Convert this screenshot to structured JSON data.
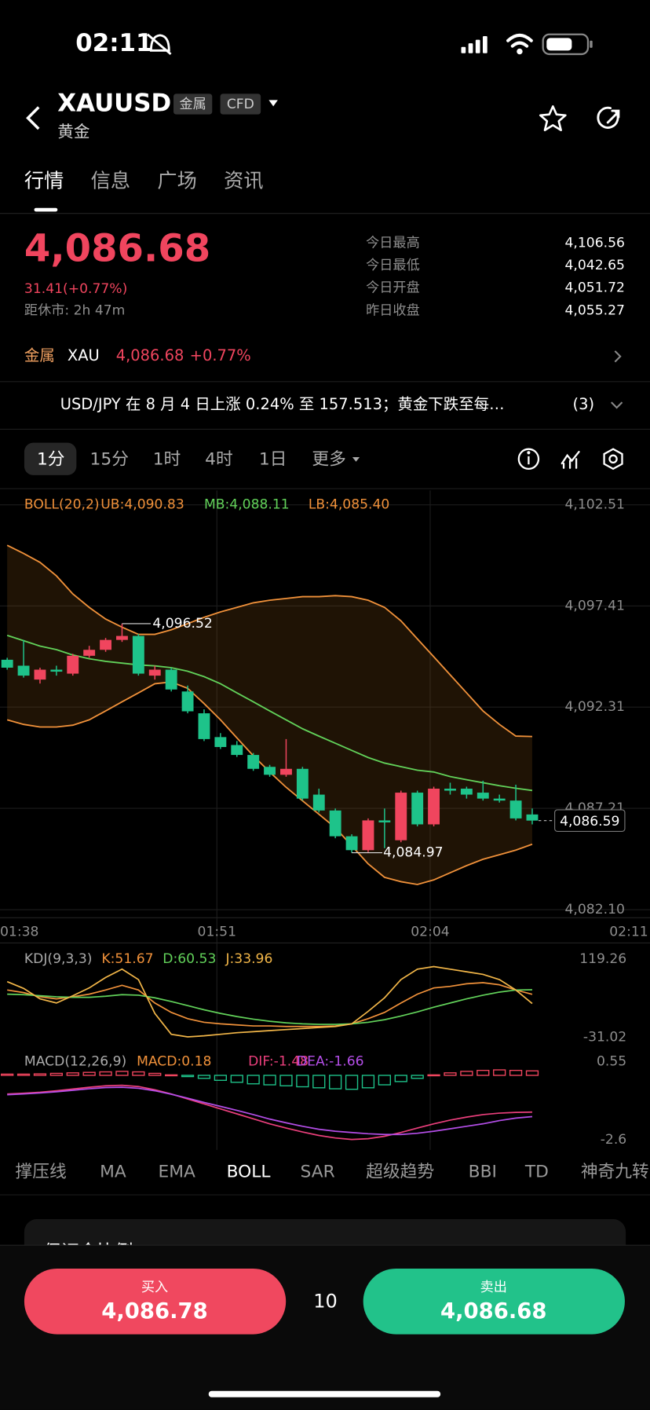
{
  "status_bar": {
    "time": "02:11"
  },
  "header": {
    "symbol": "XAUUSD",
    "tags": [
      "金属",
      "CFD"
    ],
    "name": "黄金"
  },
  "tabs": {
    "items": [
      "行情",
      "信息",
      "广场",
      "资讯"
    ],
    "active": 0
  },
  "quote": {
    "price": "4,086.68",
    "change": "31.41(+0.77%)",
    "session": "距休市: 2h 47m",
    "stats": [
      {
        "label": "今日最高",
        "value": "4,106.56"
      },
      {
        "label": "今日最低",
        "value": "4,042.65"
      },
      {
        "label": "今日开盘",
        "value": "4,051.72"
      },
      {
        "label": "昨日收盘",
        "value": "4,055.27"
      }
    ]
  },
  "related": {
    "category": "金属",
    "symbol": "XAU",
    "price": "4,086.68",
    "change": "+0.77%"
  },
  "news": {
    "headline": "USD/JPY 在 8 月 4 日上涨 0.24% 至 157.513；黄金下跌至每…",
    "count": "(3)"
  },
  "intervals": {
    "items": [
      "1分",
      "15分",
      "1时",
      "4时",
      "1日",
      "更多"
    ],
    "active": 0
  },
  "chart": {
    "type": "candlestick",
    "up_color": "#f0455e",
    "down_color": "#1ec38a",
    "ylim": [
      4082.1,
      4102.51
    ],
    "yticks": [
      {
        "value": 4102.51,
        "label": "4,102.51"
      },
      {
        "value": 4097.41,
        "label": "4,097.41"
      },
      {
        "value": 4092.31,
        "label": "4,092.31"
      },
      {
        "value": 4087.21,
        "label": "4,087.21"
      },
      {
        "value": 4082.1,
        "label": "4,082.10"
      }
    ],
    "xticks": [
      {
        "value": 0,
        "label": "01:38"
      },
      {
        "value": 13,
        "label": "01:51"
      },
      {
        "value": 26,
        "label": "02:04"
      },
      {
        "value": 33,
        "label": "02:11"
      }
    ],
    "candles": [
      {
        "open": 4094.7,
        "high": 4094.8,
        "low": 4094.2,
        "close": 4094.3
      },
      {
        "open": 4094.4,
        "high": 4095.7,
        "low": 4093.8,
        "close": 4093.9
      },
      {
        "open": 4093.7,
        "high": 4094.3,
        "low": 4093.5,
        "close": 4094.2
      },
      {
        "open": 4094.2,
        "high": 4094.4,
        "low": 4093.9,
        "close": 4094.1
      },
      {
        "open": 4094.0,
        "high": 4095.0,
        "low": 4093.9,
        "close": 4094.9
      },
      {
        "open": 4094.9,
        "high": 4095.4,
        "low": 4094.8,
        "close": 4095.2
      },
      {
        "open": 4095.2,
        "high": 4095.8,
        "low": 4095.1,
        "close": 4095.7
      },
      {
        "open": 4095.7,
        "high": 4096.52,
        "low": 4095.6,
        "close": 4095.9
      },
      {
        "open": 4095.9,
        "high": 4096.0,
        "low": 4093.9,
        "close": 4094.0
      },
      {
        "open": 4093.9,
        "high": 4094.4,
        "low": 4093.7,
        "close": 4094.2
      },
      {
        "open": 4094.2,
        "high": 4094.3,
        "low": 4093.1,
        "close": 4093.2
      },
      {
        "open": 4093.1,
        "high": 4093.4,
        "low": 4092.0,
        "close": 4092.1
      },
      {
        "open": 4092.0,
        "high": 4092.2,
        "low": 4090.6,
        "close": 4090.7
      },
      {
        "open": 4090.8,
        "high": 4091.0,
        "low": 4090.2,
        "close": 4090.3
      },
      {
        "open": 4090.4,
        "high": 4090.6,
        "low": 4089.8,
        "close": 4089.9
      },
      {
        "open": 4089.9,
        "high": 4090.0,
        "low": 4089.1,
        "close": 4089.2
      },
      {
        "open": 4089.3,
        "high": 4089.4,
        "low": 4088.8,
        "close": 4088.9
      },
      {
        "open": 4088.9,
        "high": 4090.7,
        "low": 4088.8,
        "close": 4089.2
      },
      {
        "open": 4089.2,
        "high": 4089.3,
        "low": 4087.6,
        "close": 4087.7
      },
      {
        "open": 4087.9,
        "high": 4088.2,
        "low": 4087.0,
        "close": 4087.1
      },
      {
        "open": 4087.1,
        "high": 4087.2,
        "low": 4085.7,
        "close": 4085.8
      },
      {
        "open": 4085.8,
        "high": 4085.9,
        "low": 4084.97,
        "close": 4085.1
      },
      {
        "open": 4085.1,
        "high": 4086.7,
        "low": 4085.0,
        "close": 4086.6
      },
      {
        "open": 4086.6,
        "high": 4087.2,
        "low": 4085.2,
        "close": 4086.5
      },
      {
        "open": 4085.6,
        "high": 4088.1,
        "low": 4085.5,
        "close": 4088.0
      },
      {
        "open": 4088.0,
        "high": 4088.1,
        "low": 4086.3,
        "close": 4086.4
      },
      {
        "open": 4086.4,
        "high": 4088.3,
        "low": 4086.3,
        "close": 4088.2
      },
      {
        "open": 4088.2,
        "high": 4088.5,
        "low": 4087.9,
        "close": 4088.1
      },
      {
        "open": 4088.2,
        "high": 4088.3,
        "low": 4087.7,
        "close": 4087.9
      },
      {
        "open": 4088.0,
        "high": 4088.6,
        "low": 4087.6,
        "close": 4087.7
      },
      {
        "open": 4087.7,
        "high": 4087.9,
        "low": 4087.5,
        "close": 4087.6
      },
      {
        "open": 4087.6,
        "high": 4088.4,
        "low": 4086.6,
        "close": 4086.7
      },
      {
        "open": 4086.9,
        "high": 4087.2,
        "low": 4086.4,
        "close": 4086.59
      }
    ],
    "high_marker": {
      "value": 4096.52,
      "label": "4,096.52"
    },
    "low_marker": {
      "value": 4084.97,
      "label": "4,084.97"
    },
    "last_price": {
      "value": 4086.59,
      "label": "4,086.59"
    },
    "boll": {
      "label": "BOLL(20,2)",
      "label_color": "#f0913a",
      "fill": "rgba(140,85,25,0.22)",
      "series": [
        {
          "name": "UB:4,090.83",
          "color": "#f0913a",
          "values": [
            4100.47,
            4100.06,
            4099.61,
            4098.93,
            4098.02,
            4097.34,
            4096.75,
            4096.34,
            4095.98,
            4095.98,
            4096.21,
            4096.52,
            4096.84,
            4097.11,
            4097.34,
            4097.57,
            4097.7,
            4097.79,
            4097.88,
            4097.88,
            4097.93,
            4097.88,
            4097.7,
            4097.34,
            4096.66,
            4095.75,
            4094.85,
            4093.94,
            4093.03,
            4092.12,
            4091.44,
            4090.85,
            4090.83
          ]
        },
        {
          "name": "MB:4,088.11",
          "color": "#62d25a",
          "values": [
            4095.93,
            4095.66,
            4095.39,
            4095.21,
            4094.94,
            4094.75,
            4094.62,
            4094.53,
            4094.44,
            4094.39,
            4094.3,
            4094.12,
            4093.85,
            4093.49,
            4093.03,
            4092.58,
            4092.12,
            4091.67,
            4091.22,
            4090.85,
            4090.49,
            4090.13,
            4089.77,
            4089.49,
            4089.31,
            4089.13,
            4089.04,
            4088.81,
            4088.65,
            4088.5,
            4088.35,
            4088.22,
            4088.11
          ]
        },
        {
          "name": "LB:4,085.40",
          "color": "#f0913a",
          "values": [
            4091.67,
            4091.44,
            4091.31,
            4091.31,
            4091.4,
            4091.67,
            4092.12,
            4092.58,
            4093.03,
            4093.49,
            4093.58,
            4093.26,
            4092.49,
            4091.67,
            4090.76,
            4089.86,
            4089.04,
            4088.27,
            4087.59,
            4086.91,
            4086.23,
            4085.32,
            4084.41,
            4083.73,
            4083.51,
            4083.37,
            4083.6,
            4083.96,
            4084.32,
            4084.64,
            4084.87,
            4085.1,
            4085.4
          ]
        }
      ]
    },
    "kdj": {
      "label": "KDJ(9,3,3)",
      "ylim": [
        -31.02,
        119.26
      ],
      "yticks": [
        119.26,
        -31.02
      ],
      "series": [
        {
          "name": "K:51.67",
          "color": "#f0913a",
          "values": [
            60,
            55,
            47,
            43,
            47,
            52,
            60,
            69,
            60,
            35,
            17,
            5,
            -2,
            -5,
            -7,
            -9,
            -9,
            -10,
            -10,
            -10,
            -9,
            -5,
            5,
            17,
            35,
            52,
            64,
            67,
            72,
            74,
            70,
            60,
            51.67
          ]
        },
        {
          "name": "D:60.53",
          "color": "#62d25a",
          "values": [
            52,
            51,
            49,
            47,
            46,
            46,
            48,
            51,
            50,
            45,
            38,
            30,
            22,
            15,
            9,
            4,
            0,
            -3,
            -5,
            -6,
            -6,
            -5,
            -2,
            3,
            10,
            18,
            27,
            35,
            43,
            50,
            56,
            60,
            60.53
          ]
        },
        {
          "name": "J:33.96",
          "color": "#f2b648",
          "values": [
            76,
            63,
            43,
            35,
            49,
            64,
            84,
            100,
            80,
            15,
            -25,
            -30,
            -28,
            -25,
            -22,
            -20,
            -18,
            -16,
            -14,
            -12,
            -10,
            -5,
            19,
            45,
            80,
            100,
            105,
            100,
            95,
            90,
            80,
            60,
            33.96
          ]
        }
      ]
    },
    "macd": {
      "label": "MACD(12,26,9)",
      "ylim": [
        -2.6,
        0.55
      ],
      "yticks": [
        0.55,
        -2.6
      ],
      "histogram": {
        "name": "MACD:0.18",
        "color": "#f0913a",
        "values": [
          0.05,
          0.05,
          0.06,
          0.08,
          0.1,
          0.12,
          0.14,
          0.16,
          0.14,
          0.08,
          0.02,
          -0.05,
          -0.12,
          -0.2,
          -0.28,
          -0.34,
          -0.38,
          -0.42,
          -0.46,
          -0.5,
          -0.54,
          -0.56,
          -0.5,
          -0.38,
          -0.25,
          -0.12,
          0.02,
          0.1,
          0.16,
          0.2,
          0.22,
          0.2,
          0.18
        ]
      },
      "series": [
        {
          "name": "DIF:-1.48",
          "color": "#ea3f7c",
          "values": [
            -0.75,
            -0.72,
            -0.68,
            -0.62,
            -0.55,
            -0.48,
            -0.42,
            -0.4,
            -0.45,
            -0.58,
            -0.75,
            -0.95,
            -1.15,
            -1.35,
            -1.55,
            -1.75,
            -1.95,
            -2.12,
            -2.28,
            -2.42,
            -2.52,
            -2.58,
            -2.55,
            -2.45,
            -2.3,
            -2.12,
            -1.95,
            -1.8,
            -1.68,
            -1.58,
            -1.52,
            -1.49,
            -1.48
          ]
        },
        {
          "name": "DEA:-1.66",
          "color": "#b44ee8",
          "values": [
            -0.78,
            -0.75,
            -0.71,
            -0.66,
            -0.6,
            -0.54,
            -0.49,
            -0.48,
            -0.52,
            -0.62,
            -0.76,
            -0.92,
            -1.09,
            -1.25,
            -1.41,
            -1.58,
            -1.76,
            -1.91,
            -2.05,
            -2.17,
            -2.25,
            -2.3,
            -2.35,
            -2.38,
            -2.38,
            -2.33,
            -2.25,
            -2.15,
            -2.05,
            -1.95,
            -1.82,
            -1.72,
            -1.66
          ]
        }
      ]
    }
  },
  "indicators": {
    "items": [
      "撑压线",
      "MA",
      "EMA",
      "BOLL",
      "SAR",
      "超级趋势",
      "BBI",
      "TD",
      "神奇九转"
    ],
    "active": 3
  },
  "card": {
    "title": "保证金比例"
  },
  "trade": {
    "buy_label": "买入",
    "buy_price": "4,086.78",
    "quantity": "10",
    "sell_label": "卖出",
    "sell_price": "4,086.68"
  }
}
